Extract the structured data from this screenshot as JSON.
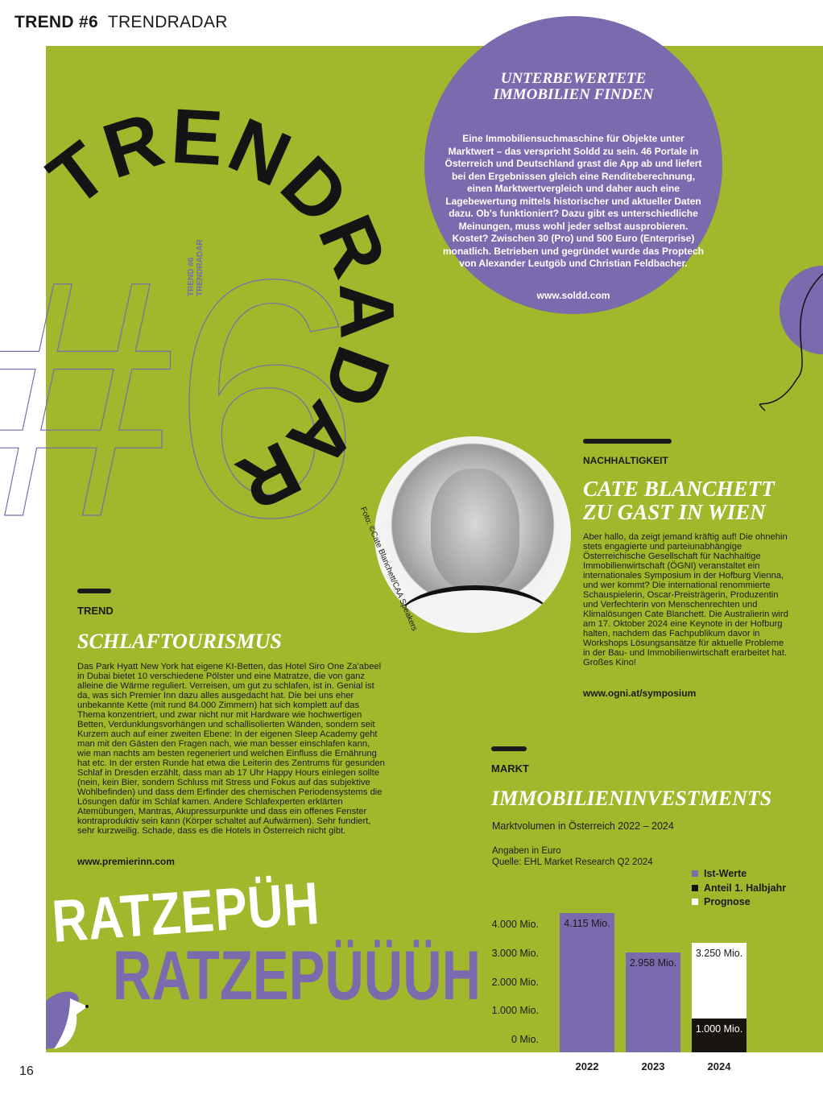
{
  "header": {
    "section": "TREND #6",
    "title": "TRENDRADAR"
  },
  "deco": {
    "arc_title": "TRENDRADAR",
    "big_number": "#6",
    "vertical_line1": "TREND #6",
    "vertical_line2": "TRENDRADAR"
  },
  "colors": {
    "green": "#a2b82c",
    "purple": "#7b6aae",
    "black": "#1a1410",
    "white": "#ffffff"
  },
  "soldd": {
    "title_line1": "UNTERBEWERTETE",
    "title_line2": "IMMOBILIEN FINDEN",
    "body": "Eine Immobiliensuchmaschine für Objekte unter Marktwert – das verspricht Soldd zu sein. 46 Portale in Österreich und Deutschland grast die App ab und liefert bei den Ergebnissen gleich eine Renditeberechnung, einen Marktwertvergleich und daher auch eine Lagebewertung mittels historischer und aktueller Daten dazu. Ob's funktioniert? Dazu gibt es unterschiedliche Meinungen, muss wohl jeder selbst ausprobieren. Kostet? Zwischen 30 (Pro) und 500 Euro (Enterprise) monatlich. Betrieben und gegründet wurde das Proptech von Alexander Leutgöb und Christian Feldbacher.",
    "url": "www.soldd.com"
  },
  "blanchett": {
    "kicker": "NACHHALTIGKEIT",
    "title_line1": "CATE BLANCHETT",
    "title_line2": "ZU GAST IN WIEN",
    "body": "Aber hallo, da zeigt jemand kräftig auf! Die ohnehin stets engagierte und parteiunabhängige Österreichische Gesellschaft für Nachhaltige Immobilienwirtschaft (ÖGNI) veranstaltet ein internationales Symposium in der Hofburg Vienna, und wer kommt? Die international renommierte Schauspielerin, Oscar-Preisträgerin, Produzentin und Verfechterin von Menschenrechten und Klimalösungen Cate Blanchett. Die Australierin wird am 17. Oktober 2024 eine Keynote in der Hofburg halten, nachdem das Fachpublikum davor in Workshops Lösungsansätze für aktuelle Probleme in der Bau- und Immobilienwirtschaft erarbeitet hat. Großes Kino!",
    "url": "www.ogni.at/symposium",
    "photo_credit": "Foto: ©Cate Blanchett/CAA Speakers"
  },
  "schlaf": {
    "kicker": "TREND",
    "title": "SCHLAFTOURISMUS",
    "body": "Das Park Hyatt New York hat eigene KI-Betten, das Hotel Siro One Za'abeel in Dubai bietet 10 verschiedene Pölster und eine Matratze, die von ganz alleine die Wärme reguliert. Verreisen, um gut zu schlafen, ist in. Genial ist da, was sich Premier Inn dazu alles ausgedacht hat. Die bei uns eher unbekannte Kette (mit rund 84.000 Zimmern) hat sich komplett auf das Thema konzentriert, und zwar nicht nur mit Hardware wie hochwertigen Betten, Verdunklungsvorhängen und schallisolierten Wänden, sondern seit Kurzem auch auf einer zweiten Ebene: In der eigenen Sleep Academy geht man mit den Gästen den Fragen nach, wie man besser einschlafen kann, wie man nachts am besten regeneriert und welchen Einfluss die Ernährung hat etc. In der ersten Runde hat etwa die Leiterin des Zentrums für gesunden Schlaf in Dresden erzählt, dass man ab 17 Uhr Happy Hours einlegen sollte (nein, kein Bier, sondern Schluss mit Stress und Fokus auf das subjektive Wohlbefinden) und dass dem Erfinder des chemischen Periodensystems die Lösungen dafür im Schlaf kamen. Andere Schlafexperten erklärten Atemübungen, Mantras, Akupressurpunkte und dass ein offenes Fenster kontraproduktiv sein kann (Körper schaltet auf Aufwärmen). Sehr fundiert, sehr kurzweilig. Schade, dass es die Hotels in Österreich nicht gibt.",
    "url": "www.premierinn.com"
  },
  "ratze": {
    "line1": "RATZEPÜH",
    "line2": "RATZEPÜÜÜH"
  },
  "markt": {
    "kicker": "MARKT",
    "title": "IMMOBILIENINVESTMENTS"
  },
  "chart_data": {
    "type": "bar",
    "title": "Marktvolumen in Österreich 2022 – 2024",
    "subtitle_line1": "Angaben in Euro",
    "subtitle_line2": "Quelle: EHL Market Research Q2 2024",
    "categories": [
      "2022",
      "2023",
      "2024"
    ],
    "yticks": [
      "0 Mio.",
      "1.000 Mio.",
      "2.000 Mio.",
      "3.000 Mio.",
      "4.000 Mio."
    ],
    "ytick_values": [
      0,
      1000,
      2000,
      3000,
      4000
    ],
    "legend_position": "top-right",
    "legend": [
      {
        "name": "Ist-Werte",
        "color": "#7b6aae"
      },
      {
        "name": "Anteil 1. Halbjahr",
        "color": "#1a1410"
      },
      {
        "name": "Prognose",
        "color": "#ffffff"
      }
    ],
    "series": [
      {
        "name": "Ist-Werte",
        "values": [
          4115,
          2958,
          null
        ],
        "labels": [
          "4.115 Mio.",
          "2.958 Mio.",
          ""
        ]
      },
      {
        "name": "Anteil 1. Halbjahr",
        "values": [
          null,
          null,
          1000
        ],
        "labels": [
          "",
          "",
          "1.000 Mio."
        ]
      },
      {
        "name": "Prognose",
        "values": [
          null,
          null,
          3250
        ],
        "labels": [
          "",
          "",
          "3.250 Mio."
        ]
      }
    ],
    "unit": "Mio. Euro",
    "grid": false
  },
  "page_number": "16"
}
